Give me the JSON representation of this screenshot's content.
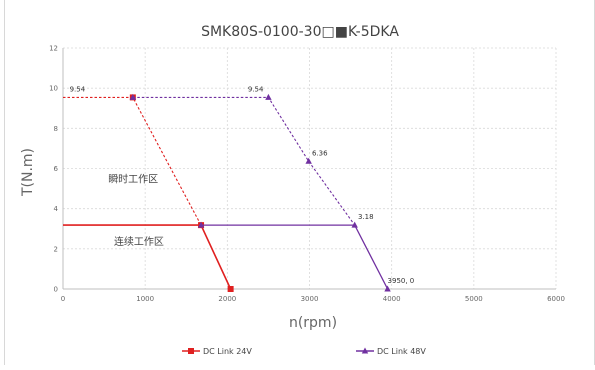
{
  "chart_data": {
    "type": "line",
    "title": "SMK80S-0100-30□■K-5DKA",
    "xlabel": "n(rpm)",
    "ylabel": "T(N.m)",
    "xlim": [
      0,
      6000
    ],
    "ylim": [
      0,
      12
    ],
    "x_ticks": [
      "0",
      "1000",
      "2000",
      "3000",
      "4000",
      "5000",
      "6000"
    ],
    "y_ticks": [
      "0",
      "2",
      "4",
      "6",
      "8",
      "10",
      "12"
    ],
    "grid": true,
    "legend_position": "bottom",
    "series": [
      {
        "name": "DC Link 24V",
        "color": "#e02020",
        "marker": "square",
        "continuous": [
          [
            0,
            3.18
          ],
          [
            1680,
            3.18
          ],
          [
            2040,
            0
          ]
        ],
        "peak": [
          [
            0,
            9.54
          ],
          [
            850,
            9.54
          ],
          [
            1680,
            3.18
          ]
        ]
      },
      {
        "name": "DC Link 48V",
        "color": "#7030a0",
        "marker": "triangle",
        "continuous": [
          [
            1680,
            3.18
          ],
          [
            3550,
            3.18
          ],
          [
            3950,
            0
          ]
        ],
        "peak": [
          [
            850,
            9.54
          ],
          [
            2500,
            9.54
          ],
          [
            2990,
            6.36
          ],
          [
            3550,
            3.18
          ]
        ]
      }
    ],
    "annotations": [
      {
        "text": "9.54",
        "x": 80,
        "y": 9.54
      },
      {
        "text": "9.54",
        "x": 2250,
        "y": 9.54
      },
      {
        "text": "6.36",
        "x": 3030,
        "y": 6.36
      },
      {
        "text": "3.18",
        "x": 3590,
        "y": 3.18
      },
      {
        "text": "3950, 0",
        "x": 3950,
        "y": 0
      }
    ],
    "regions": [
      {
        "text": "瞬时工作区",
        "x": 550,
        "y": 5.3
      },
      {
        "text": "连续工作区",
        "x": 620,
        "y": 2.2
      }
    ]
  }
}
